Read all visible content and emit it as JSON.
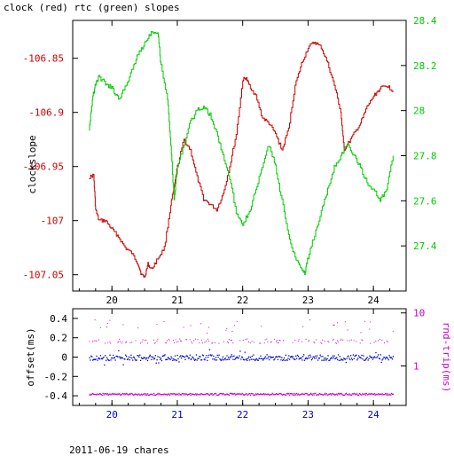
{
  "chart_data": [
    {
      "type": "line",
      "title": "clock (red) rtc (green) slopes",
      "xlabel": "",
      "ylabel": "clockslope",
      "x_ticks": [
        20,
        21,
        22,
        23,
        24
      ],
      "xlim": [
        19.4,
        24.5
      ],
      "y_left": {
        "lim": [
          -107.065,
          -106.815
        ],
        "ticks": [
          -106.85,
          -106.9,
          -106.95,
          -107,
          -107.05
        ],
        "tick_labels": [
          "-106.85",
          "-106.9",
          "-106.95",
          "-107",
          "-107.05"
        ],
        "color": "#cc0000"
      },
      "y_right": {
        "lim": [
          27.2,
          28.4
        ],
        "ticks": [
          28.4,
          28.2,
          28,
          27.8,
          27.6,
          27.4
        ],
        "tick_labels": [
          "28.4",
          "28.2",
          "28",
          "27.8",
          "27.6",
          "27.4"
        ],
        "color": "#00cc00"
      },
      "series": [
        {
          "color": "#cc0000",
          "axis": "left",
          "x": [
            19.65,
            19.72,
            19.75,
            19.8,
            19.9,
            20.0,
            20.1,
            20.2,
            20.3,
            20.4,
            20.45,
            20.5,
            20.55,
            20.6,
            20.7,
            20.8,
            20.9,
            20.95,
            21.0,
            21.1,
            21.2,
            21.3,
            21.4,
            21.5,
            21.6,
            21.7,
            21.8,
            21.9,
            22.0,
            22.05,
            22.1,
            22.2,
            22.3,
            22.4,
            22.5,
            22.6,
            22.7,
            22.8,
            22.9,
            23.0,
            23.1,
            23.2,
            23.3,
            23.4,
            23.5,
            23.55,
            23.6,
            23.7,
            23.8,
            23.9,
            24.0,
            24.1,
            24.2,
            24.3
          ],
          "y": [
            -106.96,
            -106.958,
            -106.99,
            -107.0,
            -107.0,
            -107.008,
            -107.015,
            -107.025,
            -107.03,
            -107.04,
            -107.05,
            -107.052,
            -107.04,
            -107.045,
            -107.035,
            -107.025,
            -106.985,
            -106.97,
            -106.95,
            -106.925,
            -106.935,
            -106.96,
            -106.98,
            -106.985,
            -106.99,
            -106.975,
            -106.95,
            -106.92,
            -106.87,
            -106.868,
            -106.875,
            -106.885,
            -106.905,
            -106.91,
            -106.92,
            -106.935,
            -106.915,
            -106.875,
            -106.855,
            -106.84,
            -106.835,
            -106.84,
            -106.855,
            -106.875,
            -106.9,
            -106.935,
            -106.93,
            -106.92,
            -106.91,
            -106.895,
            -106.885,
            -106.878,
            -106.875,
            -106.88
          ]
        },
        {
          "color": "#00cc00",
          "axis": "right",
          "x": [
            19.65,
            19.7,
            19.75,
            19.8,
            19.9,
            20.0,
            20.1,
            20.2,
            20.3,
            20.4,
            20.5,
            20.6,
            20.7,
            20.75,
            20.85,
            20.9,
            20.95,
            21.0,
            21.1,
            21.2,
            21.3,
            21.4,
            21.5,
            21.6,
            21.7,
            21.8,
            21.9,
            22.0,
            22.1,
            22.2,
            22.3,
            22.4,
            22.5,
            22.6,
            22.7,
            22.8,
            22.9,
            22.95,
            23.0,
            23.1,
            23.2,
            23.3,
            23.4,
            23.5,
            23.6,
            23.7,
            23.8,
            23.9,
            24.0,
            24.1,
            24.2,
            24.3
          ],
          "y": [
            27.92,
            28.05,
            28.12,
            28.15,
            28.12,
            28.1,
            28.05,
            28.1,
            28.18,
            28.25,
            28.3,
            28.35,
            28.35,
            28.2,
            28.05,
            27.85,
            27.6,
            27.75,
            27.85,
            27.95,
            28.0,
            28.02,
            27.98,
            27.9,
            27.8,
            27.7,
            27.55,
            27.5,
            27.55,
            27.65,
            27.75,
            27.85,
            27.75,
            27.6,
            27.45,
            27.35,
            27.3,
            27.28,
            27.35,
            27.45,
            27.55,
            27.65,
            27.75,
            27.8,
            27.85,
            27.8,
            27.75,
            27.68,
            27.65,
            27.6,
            27.65,
            27.8
          ]
        }
      ]
    },
    {
      "type": "scatter",
      "xlabel": "",
      "ylabel": "offset(ms)",
      "y2label": "rnd-trip(ms)",
      "x_ticks": [
        20,
        21,
        22,
        23,
        24
      ],
      "xlim": [
        19.4,
        24.5
      ],
      "y_left": {
        "lim": [
          -0.5,
          0.5
        ],
        "ticks": [
          0.4,
          0.2,
          0,
          -0.2,
          -0.4
        ],
        "tick_labels": [
          "0.4",
          "0.2",
          "0",
          "-0.2",
          "-0.4"
        ],
        "color": "#0000cc"
      },
      "y_right": {
        "lim": [
          0.18,
          12
        ],
        "scale": "log",
        "ticks": [
          10,
          1
        ],
        "tick_labels": [
          "10",
          "1"
        ],
        "color": "#cc00cc"
      },
      "series": [
        {
          "color": "#0000cc",
          "axis": "left",
          "marker": "dot",
          "band_center": 0.0,
          "band_spread": 0.03
        },
        {
          "color": "#cc00cc",
          "axis": "right",
          "marker": "dot",
          "bands": [
            0.3,
            3.0,
            6.0
          ]
        }
      ]
    }
  ],
  "footer": "2011-06-19 chares"
}
